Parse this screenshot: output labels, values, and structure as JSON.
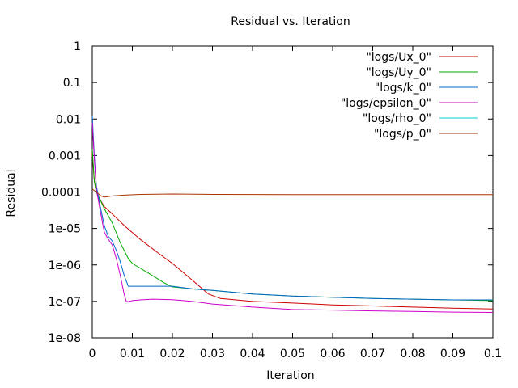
{
  "chart_data": {
    "type": "line",
    "title": "Residual vs. Iteration",
    "xlabel": "Iteration",
    "ylabel": "Residual",
    "xlim": [
      0,
      0.1
    ],
    "ylim": [
      1e-08,
      1
    ],
    "yscale": "log",
    "grid": false,
    "legend_position": "top-right",
    "x_ticks": [
      "0",
      "0.01",
      "0.02",
      "0.03",
      "0.04",
      "0.05",
      "0.06",
      "0.07",
      "0.08",
      "0.09",
      "0.1"
    ],
    "y_ticks": [
      "1e-08",
      "1e-07",
      "1e-06",
      "1e-05",
      "0.0001",
      "0.001",
      "0.01",
      "0.1",
      "1"
    ],
    "series": [
      {
        "name": "\"logs/Ux_0\"",
        "color": "#cc0000",
        "points": [
          [
            0,
            0.0012
          ],
          [
            0.0005,
            0.0002
          ],
          [
            0.001,
            0.0001
          ],
          [
            0.002,
            6e-05
          ],
          [
            0.003,
            4e-05
          ],
          [
            0.005,
            2.5e-05
          ],
          [
            0.008,
            1.2e-05
          ],
          [
            0.012,
            5e-06
          ],
          [
            0.016,
            2.3e-06
          ],
          [
            0.02,
            1.1e-06
          ],
          [
            0.025,
            3.8e-07
          ],
          [
            0.029,
            1.6e-07
          ],
          [
            0.032,
            1.2e-07
          ],
          [
            0.04,
            1e-07
          ],
          [
            0.05,
            9e-08
          ],
          [
            0.06,
            8e-08
          ],
          [
            0.07,
            7.5e-08
          ],
          [
            0.08,
            7e-08
          ],
          [
            0.09,
            6.5e-08
          ],
          [
            0.1,
            6.2e-08
          ]
        ]
      },
      {
        "name": "\"logs/Uy_0\"",
        "color": "#00aa00",
        "points": [
          [
            0,
            0.0015
          ],
          [
            0.0005,
            0.0002
          ],
          [
            0.001,
            0.0001
          ],
          [
            0.002,
            6e-05
          ],
          [
            0.003,
            3.5e-05
          ],
          [
            0.005,
            1.4e-05
          ],
          [
            0.007,
            4e-06
          ],
          [
            0.009,
            1.5e-06
          ],
          [
            0.01,
            1.1e-06
          ],
          [
            0.014,
            6e-07
          ],
          [
            0.018,
            3.2e-07
          ],
          [
            0.02,
            2.5e-07
          ],
          [
            0.025,
            2.2e-07
          ],
          [
            0.03,
            2e-07
          ],
          [
            0.04,
            1.6e-07
          ],
          [
            0.05,
            1.4e-07
          ],
          [
            0.06,
            1.3e-07
          ],
          [
            0.07,
            1.2e-07
          ],
          [
            0.08,
            1.15e-07
          ],
          [
            0.09,
            1.1e-07
          ],
          [
            0.1,
            1.05e-07
          ]
        ]
      },
      {
        "name": "\"logs/k_0\"",
        "color": "#0066cc",
        "points": [
          [
            0,
            0.012
          ],
          [
            0.0005,
            0.001
          ],
          [
            0.001,
            0.00015
          ],
          [
            0.002,
            4e-05
          ],
          [
            0.003,
            1.2e-05
          ],
          [
            0.004,
            6e-06
          ],
          [
            0.005,
            4.5e-06
          ],
          [
            0.006,
            2.5e-06
          ],
          [
            0.007,
            1.2e-06
          ],
          [
            0.008,
            5e-07
          ],
          [
            0.009,
            2.6e-07
          ],
          [
            0.01,
            2.6e-07
          ],
          [
            0.015,
            2.6e-07
          ],
          [
            0.02,
            2.6e-07
          ],
          [
            0.025,
            2.2e-07
          ],
          [
            0.03,
            2e-07
          ],
          [
            0.04,
            1.6e-07
          ],
          [
            0.05,
            1.4e-07
          ],
          [
            0.06,
            1.3e-07
          ],
          [
            0.07,
            1.2e-07
          ],
          [
            0.08,
            1.15e-07
          ],
          [
            0.09,
            1.1e-07
          ],
          [
            0.1,
            1.1e-07
          ]
        ]
      },
      {
        "name": "\"logs/epsilon_0\"",
        "color": "#cc00cc",
        "points": [
          [
            0,
            0.008
          ],
          [
            0.0005,
            0.0008
          ],
          [
            0.001,
            0.00012
          ],
          [
            0.002,
            3e-05
          ],
          [
            0.003,
            8e-06
          ],
          [
            0.004,
            5e-06
          ],
          [
            0.005,
            3.5e-06
          ],
          [
            0.006,
            1.5e-06
          ],
          [
            0.007,
            5e-07
          ],
          [
            0.008,
            1.5e-07
          ],
          [
            0.0085,
            1e-07
          ],
          [
            0.009,
            9.8e-08
          ],
          [
            0.01,
            1.05e-07
          ],
          [
            0.012,
            1.1e-07
          ],
          [
            0.015,
            1.15e-07
          ],
          [
            0.02,
            1.12e-07
          ],
          [
            0.025,
            1e-07
          ],
          [
            0.03,
            8.5e-08
          ],
          [
            0.04,
            7e-08
          ],
          [
            0.05,
            6e-08
          ],
          [
            0.06,
            5.8e-08
          ],
          [
            0.07,
            5.5e-08
          ],
          [
            0.08,
            5.3e-08
          ],
          [
            0.09,
            5.1e-08
          ],
          [
            0.1,
            5e-08
          ]
        ]
      },
      {
        "name": "\"logs/rho_0\"",
        "color": "#00cccc",
        "points": []
      },
      {
        "name": "\"logs/p_0\"",
        "color": "#aa3300",
        "points": [
          [
            0,
            0.00012
          ],
          [
            0.001,
            0.0001
          ],
          [
            0.002,
            8e-05
          ],
          [
            0.003,
            7.2e-05
          ],
          [
            0.005,
            7.8e-05
          ],
          [
            0.008,
            8.2e-05
          ],
          [
            0.012,
            8.6e-05
          ],
          [
            0.02,
            8.8e-05
          ],
          [
            0.03,
            8.6e-05
          ],
          [
            0.05,
            8.5e-05
          ],
          [
            0.07,
            8.5e-05
          ],
          [
            0.09,
            8.5e-05
          ],
          [
            0.1,
            8.5e-05
          ]
        ]
      }
    ]
  }
}
